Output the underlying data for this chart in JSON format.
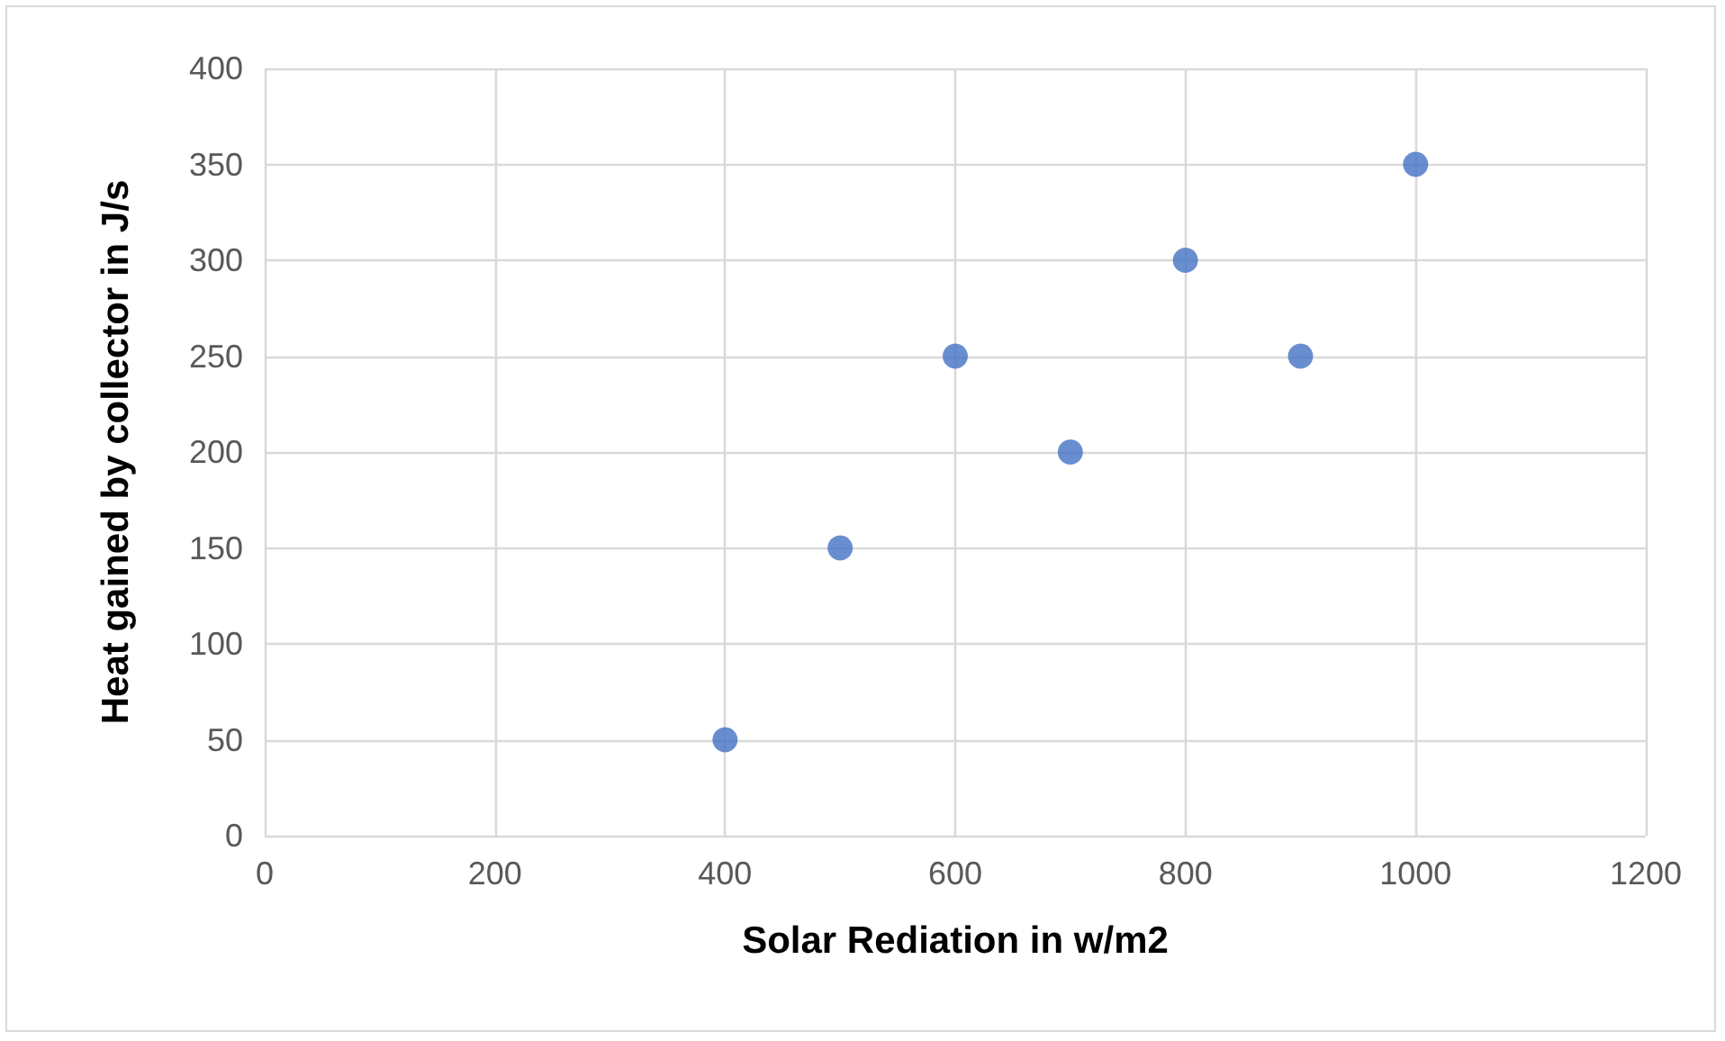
{
  "chart_data": {
    "type": "scatter",
    "xlabel": "Solar Rediation in w/m2",
    "ylabel": "Heat gained by collector in J/s",
    "x": [
      400,
      500,
      600,
      700,
      800,
      900,
      1000
    ],
    "series": [
      {
        "color": "#4472c4",
        "values": [
          50,
          150,
          250,
          200,
          300,
          250,
          350
        ]
      }
    ],
    "xlim": [
      0,
      1200
    ],
    "xticks": [
      0,
      200,
      400,
      600,
      800,
      1000,
      1200
    ],
    "ylim": [
      0,
      400
    ],
    "yticks": [
      0,
      50,
      100,
      150,
      200,
      250,
      300,
      350,
      400
    ],
    "grid": true,
    "marker": "circle"
  }
}
